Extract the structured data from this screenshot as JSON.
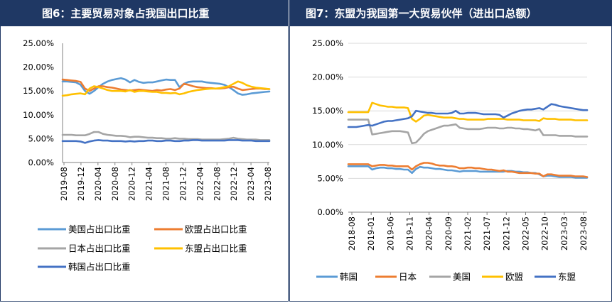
{
  "left": {
    "title": "图6：主要贸易对象占我国出口比重",
    "chart_data": {
      "type": "line",
      "ylim": [
        0,
        25
      ],
      "yticks": [
        "0.00%",
        "5.00%",
        "10.00%",
        "15.00%",
        "20.00%",
        "25.00%"
      ],
      "xticks": [
        "2019-08",
        "2019-12",
        "2020-04",
        "2020-08",
        "2020-12",
        "2021-04",
        "2021-08",
        "2021-12",
        "2022-04",
        "2022-08",
        "2022-12",
        "2023-04",
        "2023-08"
      ],
      "grid": false,
      "legend_placement": "bottom",
      "series": [
        {
          "name": "美国占出口比重",
          "color": "#5b9bd5",
          "values": [
            17.0,
            17.0,
            16.9,
            16.8,
            16.3,
            15.0,
            14.4,
            15.0,
            15.8,
            16.5,
            17.0,
            17.3,
            17.5,
            17.7,
            17.4,
            16.8,
            17.3,
            16.9,
            16.7,
            16.8,
            16.8,
            17.0,
            17.2,
            17.4,
            17.3,
            17.3,
            15.8,
            16.5,
            16.9,
            17.0,
            17.0,
            17.0,
            16.8,
            16.7,
            16.6,
            16.5,
            16.3,
            15.8,
            15.2,
            14.5,
            14.2,
            14.3,
            14.5,
            14.6,
            14.7,
            14.8,
            14.9
          ]
        },
        {
          "name": "欧盟占出口比重",
          "color": "#ed7d31",
          "values": [
            17.4,
            17.3,
            17.2,
            17.1,
            16.9,
            15.5,
            15.0,
            15.5,
            16.0,
            16.0,
            15.8,
            15.7,
            15.5,
            15.3,
            15.2,
            15.1,
            15.2,
            15.3,
            15.2,
            15.1,
            15.0,
            15.2,
            15.1,
            15.3,
            15.4,
            15.2,
            15.5,
            16.5,
            16.3,
            16.0,
            15.8,
            15.7,
            15.6,
            15.6,
            15.5,
            15.5,
            15.6,
            15.8,
            15.9,
            15.5,
            15.2,
            15.3,
            15.4,
            15.5,
            15.5,
            15.4,
            15.4
          ]
        },
        {
          "name": "日本占出口比重",
          "color": "#a5a5a5",
          "values": [
            5.8,
            5.8,
            5.8,
            5.7,
            5.7,
            5.7,
            6.0,
            6.4,
            6.4,
            6.0,
            5.8,
            5.7,
            5.6,
            5.6,
            5.5,
            5.3,
            5.4,
            5.4,
            5.3,
            5.2,
            5.2,
            5.1,
            5.1,
            5.0,
            5.0,
            5.1,
            5.0,
            5.0,
            4.9,
            4.9,
            4.9,
            4.8,
            4.8,
            4.8,
            4.8,
            4.8,
            4.9,
            5.0,
            5.2,
            5.0,
            4.9,
            4.8,
            4.8,
            4.8,
            4.7,
            4.7,
            4.7
          ]
        },
        {
          "name": "东盟占出口比重",
          "color": "#ffc000",
          "values": [
            14.0,
            14.1,
            14.3,
            14.4,
            14.5,
            14.3,
            15.5,
            16.0,
            15.8,
            15.5,
            15.2,
            15.0,
            15.0,
            15.0,
            14.9,
            15.2,
            14.8,
            15.0,
            15.0,
            14.9,
            14.8,
            14.8,
            14.6,
            14.6,
            14.5,
            14.6,
            14.3,
            14.5,
            14.8,
            15.0,
            15.2,
            15.3,
            15.4,
            15.5,
            15.5,
            15.6,
            15.8,
            16.0,
            16.5,
            17.0,
            16.7,
            16.2,
            15.9,
            15.7,
            15.6,
            15.5,
            15.4
          ]
        },
        {
          "name": "韩国占出口比重",
          "color": "#4472c4",
          "values": [
            4.5,
            4.5,
            4.5,
            4.5,
            4.4,
            4.1,
            4.4,
            4.6,
            4.7,
            4.6,
            4.6,
            4.5,
            4.5,
            4.5,
            4.4,
            4.5,
            4.4,
            4.5,
            4.5,
            4.6,
            4.6,
            4.5,
            4.5,
            4.6,
            4.6,
            4.5,
            4.5,
            4.6,
            4.6,
            4.7,
            4.7,
            4.6,
            4.6,
            4.6,
            4.6,
            4.6,
            4.6,
            4.7,
            4.7,
            4.7,
            4.6,
            4.6,
            4.6,
            4.5,
            4.5,
            4.5,
            4.5
          ]
        }
      ]
    }
  },
  "right": {
    "title": "图7：东盟为我国第一大贸易伙伴（进出口总额）",
    "chart_data": {
      "type": "line",
      "ylim": [
        0,
        25
      ],
      "yticks": [
        "0.00%",
        "5.00%",
        "10.00%",
        "15.00%",
        "20.00%",
        "25.00%"
      ],
      "xticks": [
        "2018-08",
        "2019-01",
        "2019-06",
        "2019-11",
        "2020-04",
        "2020-09",
        "2021-02",
        "2021-07",
        "2021-12",
        "2022-05",
        "2022-10",
        "2023-03",
        "2023-08"
      ],
      "grid": true,
      "legend_placement": "bottom",
      "series": [
        {
          "name": "韩国",
          "color": "#5b9bd5",
          "values": [
            6.8,
            6.8,
            6.8,
            6.8,
            6.8,
            6.8,
            6.3,
            6.5,
            6.6,
            6.6,
            6.5,
            6.5,
            6.4,
            6.4,
            6.3,
            6.3,
            5.8,
            6.4,
            6.7,
            6.6,
            6.6,
            6.5,
            6.4,
            6.4,
            6.3,
            6.2,
            6.2,
            6.1,
            6.0,
            6.1,
            6.1,
            6.1,
            6.1,
            6.0,
            6.0,
            6.0,
            6.0,
            6.0,
            6.0,
            6.0,
            6.1,
            6.1,
            6.0,
            6.0,
            5.9,
            5.9,
            5.8,
            5.8,
            5.6,
            5.3,
            5.4,
            5.4,
            5.3,
            5.2,
            5.2,
            5.2,
            5.2,
            5.1,
            5.1,
            5.1,
            5.1
          ]
        },
        {
          "name": "日本",
          "color": "#ed7d31",
          "values": [
            7.1,
            7.1,
            7.1,
            7.1,
            7.1,
            7.1,
            6.8,
            6.9,
            7.0,
            7.0,
            6.9,
            6.9,
            6.8,
            6.8,
            6.8,
            6.8,
            6.3,
            6.8,
            7.1,
            7.3,
            7.3,
            7.2,
            7.0,
            6.9,
            6.9,
            6.8,
            6.8,
            6.7,
            6.5,
            6.5,
            6.6,
            6.6,
            6.5,
            6.5,
            6.4,
            6.3,
            6.3,
            6.2,
            6.1,
            6.2,
            6.0,
            6.0,
            5.9,
            5.8,
            5.8,
            5.8,
            5.8,
            5.7,
            5.7,
            5.3,
            5.6,
            5.6,
            5.5,
            5.4,
            5.4,
            5.4,
            5.4,
            5.3,
            5.3,
            5.3,
            5.2
          ]
        },
        {
          "name": "美国",
          "color": "#a5a5a5",
          "values": [
            13.7,
            13.7,
            13.7,
            13.7,
            13.7,
            13.7,
            11.5,
            11.6,
            11.7,
            11.8,
            11.9,
            12.0,
            12.0,
            12.0,
            11.9,
            11.8,
            10.2,
            10.3,
            10.9,
            11.6,
            12.0,
            12.2,
            12.4,
            12.6,
            12.8,
            12.8,
            12.9,
            13.0,
            12.5,
            12.4,
            12.3,
            12.3,
            12.3,
            12.3,
            12.4,
            12.5,
            12.5,
            12.5,
            12.4,
            12.4,
            12.5,
            12.5,
            12.4,
            12.4,
            12.3,
            12.3,
            12.2,
            12.1,
            12.3,
            11.4,
            11.4,
            11.4,
            11.4,
            11.3,
            11.3,
            11.3,
            11.3,
            11.2,
            11.2,
            11.2,
            11.2
          ]
        },
        {
          "name": "欧盟",
          "color": "#ffc000",
          "values": [
            14.8,
            14.8,
            14.8,
            14.8,
            14.8,
            14.8,
            16.2,
            16.0,
            15.8,
            15.7,
            15.6,
            15.6,
            15.5,
            15.5,
            15.5,
            15.4,
            13.8,
            13.4,
            13.8,
            14.3,
            14.4,
            14.3,
            14.2,
            14.1,
            14.0,
            14.0,
            14.0,
            13.9,
            13.8,
            13.8,
            13.7,
            13.7,
            13.7,
            13.7,
            13.7,
            13.8,
            13.8,
            13.8,
            13.8,
            13.8,
            13.7,
            13.7,
            13.7,
            13.7,
            13.6,
            13.6,
            13.6,
            13.6,
            13.5,
            13.9,
            13.8,
            13.8,
            13.8,
            13.7,
            13.7,
            13.7,
            13.7,
            13.6,
            13.6,
            13.6,
            13.6
          ]
        },
        {
          "name": "东盟",
          "color": "#4472c4",
          "values": [
            12.6,
            12.6,
            12.6,
            12.7,
            12.8,
            12.9,
            12.8,
            13.0,
            13.2,
            13.4,
            13.5,
            13.5,
            13.6,
            13.7,
            13.8,
            13.9,
            14.2,
            15.0,
            14.9,
            14.8,
            14.7,
            14.7,
            14.6,
            14.6,
            14.6,
            14.6,
            14.7,
            15.0,
            14.6,
            14.6,
            14.7,
            14.7,
            14.7,
            14.6,
            14.5,
            14.5,
            14.5,
            14.5,
            14.4,
            14.0,
            14.3,
            14.6,
            14.8,
            15.0,
            15.1,
            15.2,
            15.2,
            15.3,
            15.4,
            15.2,
            15.6,
            16.0,
            15.9,
            15.7,
            15.6,
            15.5,
            15.4,
            15.3,
            15.2,
            15.1,
            15.1
          ]
        }
      ]
    }
  }
}
